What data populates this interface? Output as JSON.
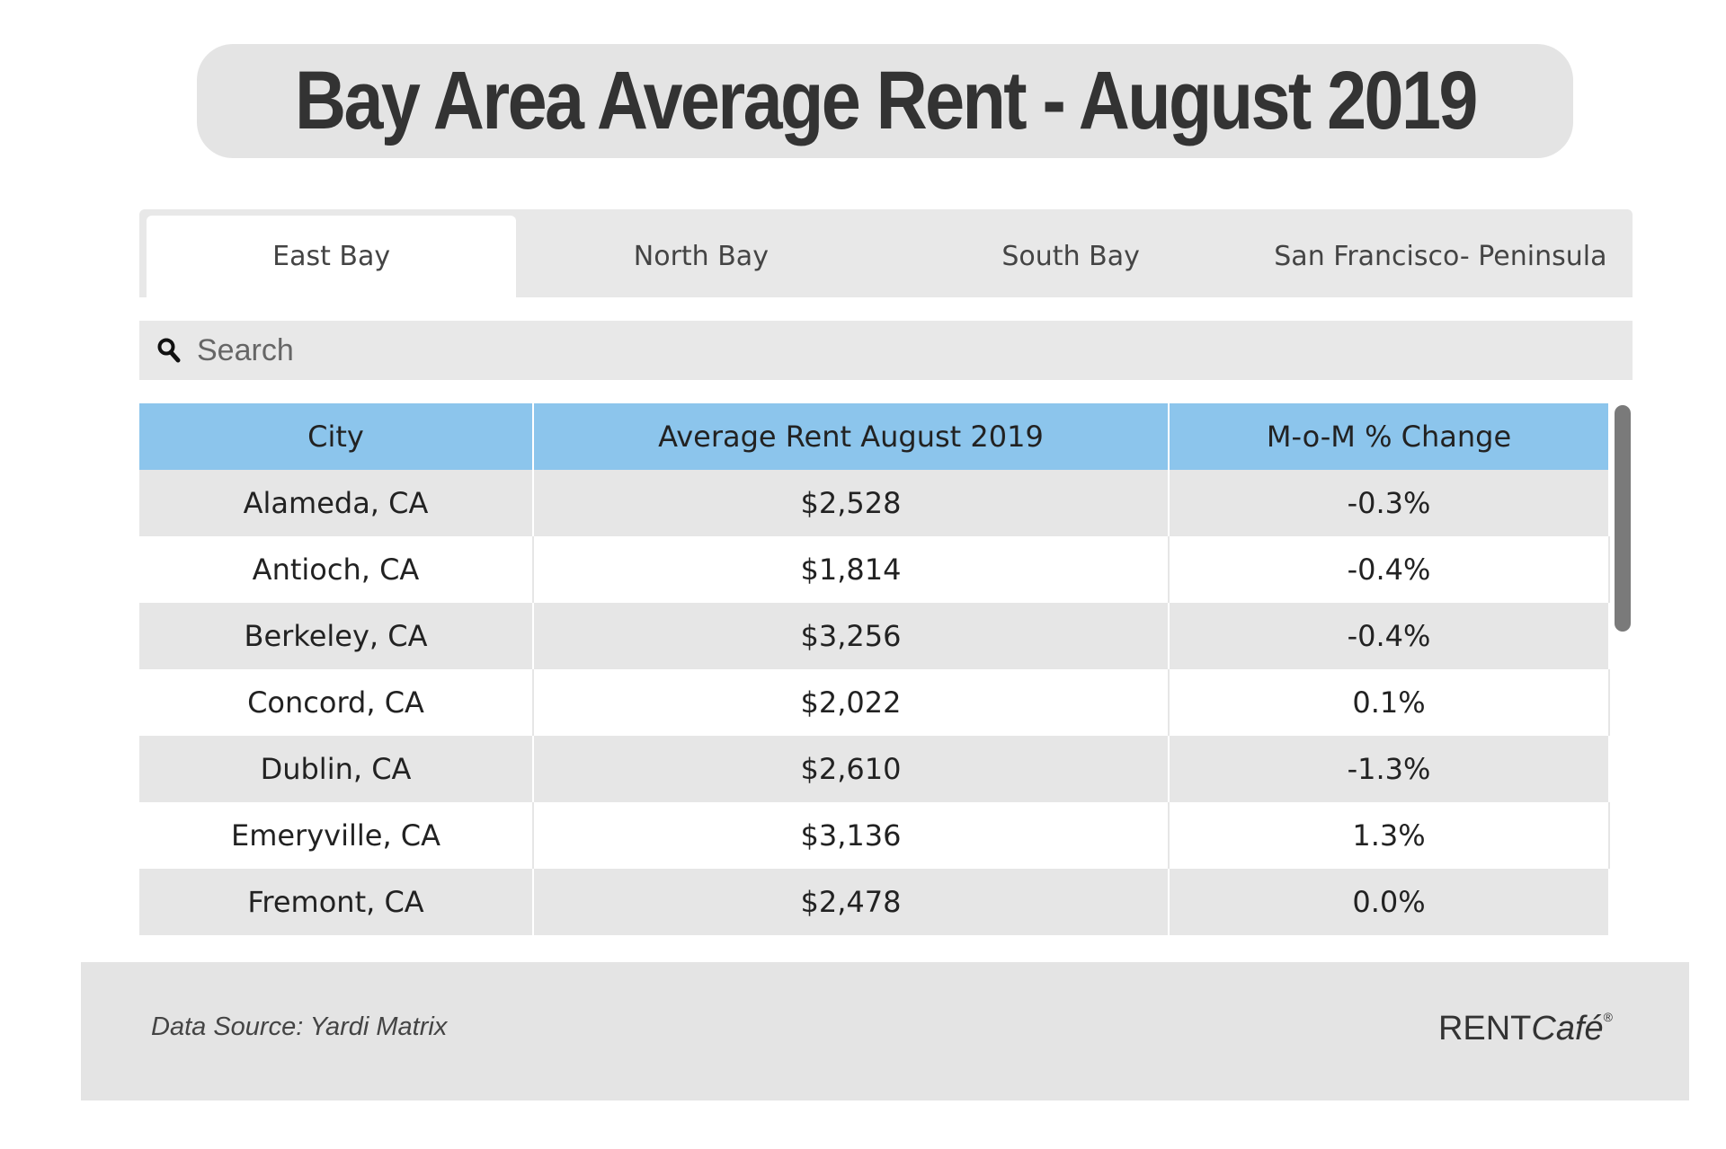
{
  "header": {
    "title": "Bay Area Average Rent - August 2019"
  },
  "tabs": [
    "East Bay",
    "North Bay",
    "South Bay",
    "San Francisco- Peninsula"
  ],
  "active_tab": 0,
  "search": {
    "placeholder": "Search"
  },
  "table": {
    "columns": [
      "City",
      "Average Rent August 2019",
      "M-o-M % Change"
    ],
    "rows": [
      [
        "Alameda, CA",
        "$2,528",
        "-0.3%"
      ],
      [
        "Antioch, CA",
        "$1,814",
        "-0.4%"
      ],
      [
        "Berkeley, CA",
        "$3,256",
        "-0.4%"
      ],
      [
        "Concord, CA",
        "$2,022",
        "0.1%"
      ],
      [
        "Dublin, CA",
        "$2,610",
        "-1.3%"
      ],
      [
        "Emeryville, CA",
        "$3,136",
        "1.3%"
      ],
      [
        "Fremont, CA",
        "$2,478",
        "0.0%"
      ]
    ]
  },
  "footer": {
    "source": "Data Source: Yardi Matrix",
    "logo": [
      "RENT",
      "Café",
      "®"
    ]
  }
}
